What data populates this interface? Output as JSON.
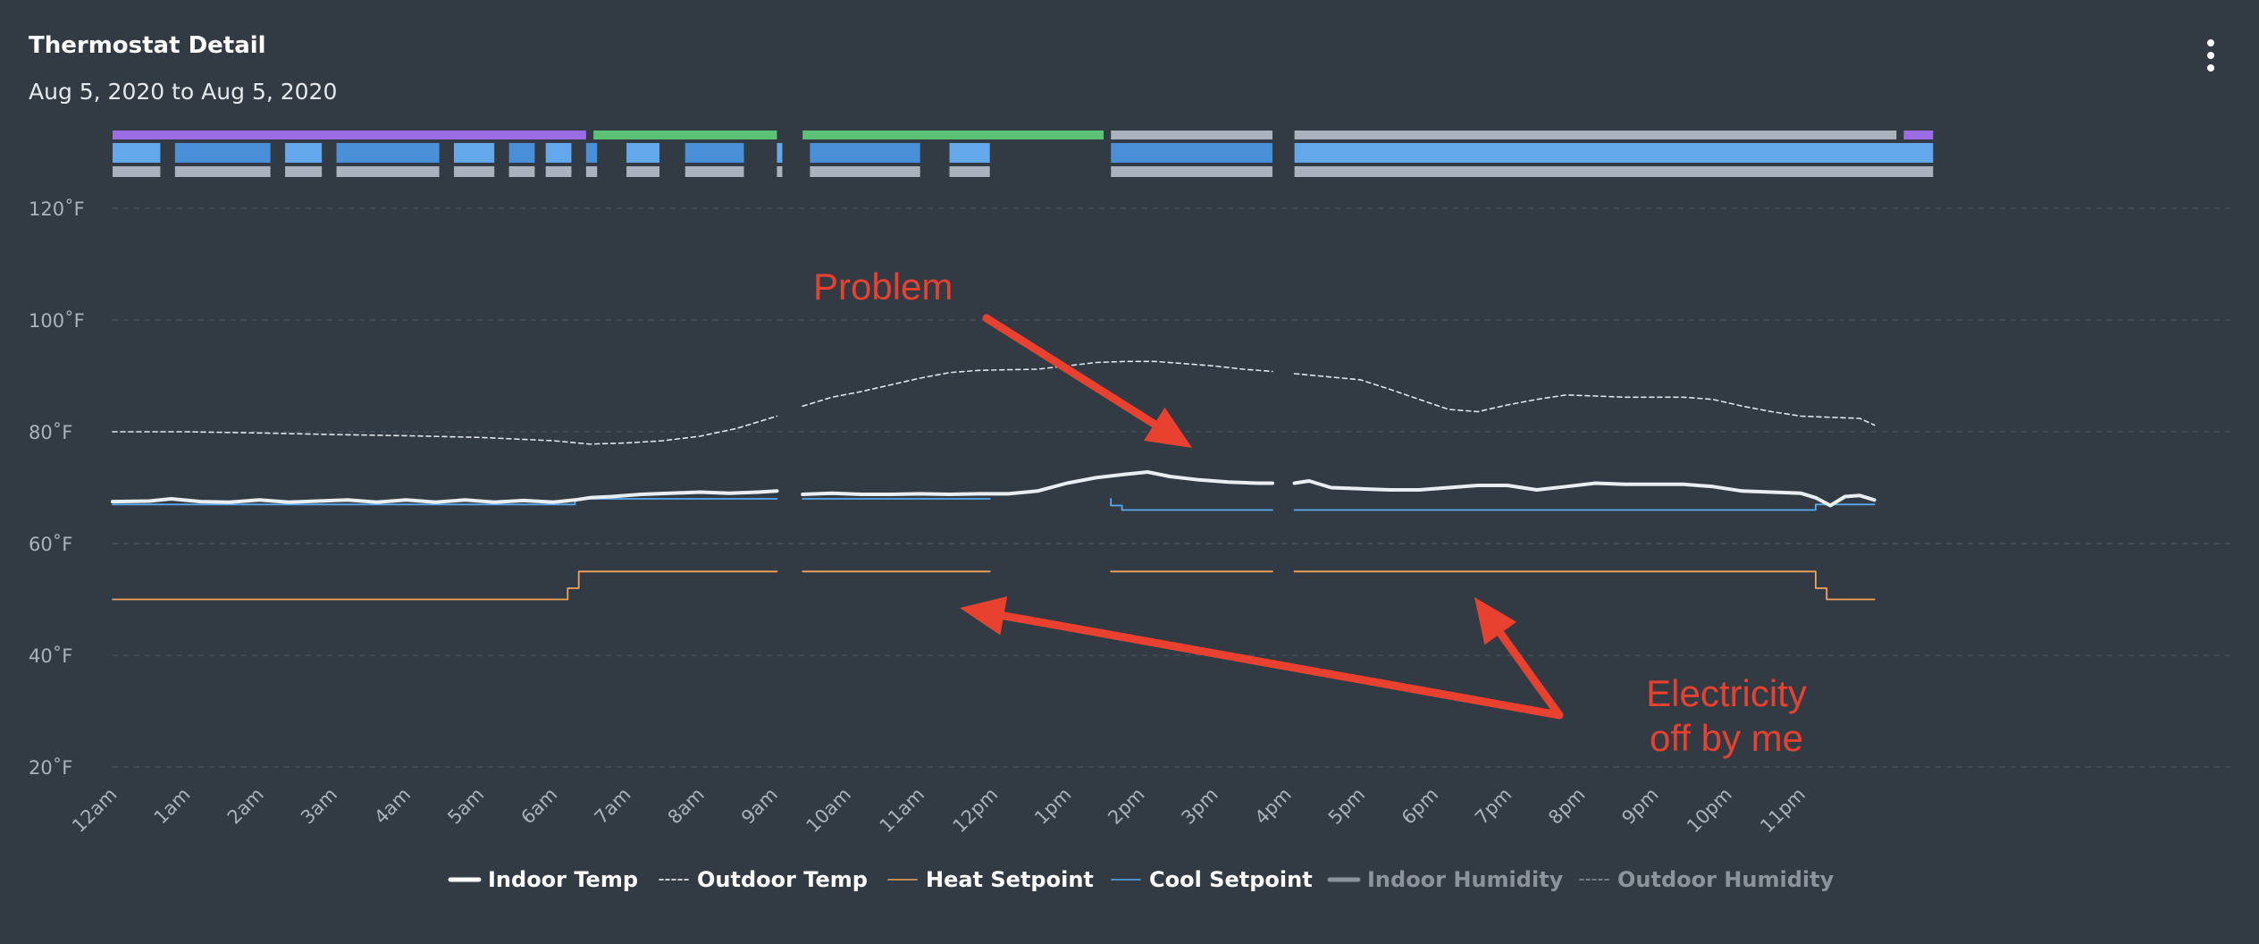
{
  "header": {
    "title": "Thermostat Detail",
    "date_range": "Aug 5, 2020 to Aug 5, 2020",
    "menu_icon": "more-vertical-icon"
  },
  "annotations": {
    "problem": "Problem",
    "electricity_line1": "Electricity",
    "electricity_line2": "off by me",
    "color": "#e8412f"
  },
  "colors": {
    "background": "#323b44",
    "indoor_temp": "#e9eef3",
    "outdoor_temp": "#e0e4e8",
    "heat_setpoint": "#f0a35a",
    "cool_setpoint": "#5aa9f0",
    "indoor_humidity": "#9aa0a6",
    "outdoor_humidity": "#9aa0a6",
    "mode_heat": "#9b6ce6",
    "mode_cool": "#5cc277",
    "mode_off": "#aab3bd",
    "equip_cool": "#4a90d9",
    "equip_cool_bright": "#63a8ea",
    "equip_fan": "#aab3bd"
  },
  "chart_data": {
    "type": "line",
    "title": "Thermostat Detail",
    "subtitle": "Aug 5, 2020 to Aug 5, 2020",
    "x_unit": "hour of day",
    "xlim": [
      0,
      24
    ],
    "ylim": [
      20,
      125
    ],
    "y_ticks": [
      20,
      40,
      60,
      80,
      100,
      120
    ],
    "y_tick_labels": [
      "20˚F",
      "40˚F",
      "60˚F",
      "80˚F",
      "100˚F",
      "120˚F"
    ],
    "x_ticks": [
      0,
      1,
      2,
      3,
      4,
      5,
      6,
      7,
      8,
      9,
      10,
      11,
      12,
      13,
      14,
      15,
      16,
      17,
      18,
      19,
      20,
      21,
      22,
      23
    ],
    "x_tick_labels": [
      "12am",
      "1am",
      "2am",
      "3am",
      "4am",
      "5am",
      "6am",
      "7am",
      "8am",
      "9am",
      "10am",
      "11am",
      "12pm",
      "1pm",
      "2pm",
      "3pm",
      "4pm",
      "5pm",
      "6pm",
      "7pm",
      "8pm",
      "9pm",
      "10pm",
      "11pm"
    ],
    "grid": true,
    "legend_position": "bottom-center",
    "legend": [
      {
        "name": "Indoor Temp",
        "style": "thick-solid",
        "active": true
      },
      {
        "name": "Outdoor Temp",
        "style": "dashed",
        "active": true
      },
      {
        "name": "Heat Setpoint",
        "style": "thin-solid-orange",
        "active": true
      },
      {
        "name": "Cool Setpoint",
        "style": "thin-solid-blue",
        "active": true
      },
      {
        "name": "Indoor Humidity",
        "style": "thick-solid-gray",
        "active": false
      },
      {
        "name": "Outdoor Humidity",
        "style": "dashed-gray",
        "active": false
      }
    ],
    "series": [
      {
        "name": "Indoor Temp",
        "segments": [
          [
            [
              0,
              67.5
            ],
            [
              0.5,
              67.6
            ],
            [
              0.8,
              68
            ],
            [
              1.2,
              67.5
            ],
            [
              1.6,
              67.4
            ],
            [
              2,
              67.8
            ],
            [
              2.4,
              67.4
            ],
            [
              2.8,
              67.6
            ],
            [
              3.2,
              67.8
            ],
            [
              3.6,
              67.4
            ],
            [
              4,
              67.8
            ],
            [
              4.4,
              67.4
            ],
            [
              4.8,
              67.8
            ],
            [
              5.2,
              67.4
            ],
            [
              5.6,
              67.7
            ],
            [
              6,
              67.4
            ],
            [
              6.3,
              67.8
            ],
            [
              6.5,
              68.2
            ],
            [
              6.8,
              68.4
            ],
            [
              7.2,
              68.8
            ],
            [
              7.6,
              69
            ],
            [
              8,
              69.2
            ],
            [
              8.4,
              69
            ],
            [
              8.8,
              69.2
            ],
            [
              9.05,
              69.4
            ]
          ],
          [
            [
              9.4,
              68.8
            ],
            [
              9.8,
              69
            ],
            [
              10.2,
              68.8
            ],
            [
              10.6,
              68.8
            ],
            [
              11,
              68.9
            ],
            [
              11.4,
              68.8
            ],
            [
              11.8,
              68.9
            ],
            [
              12.2,
              68.9
            ],
            [
              12.6,
              69.4
            ],
            [
              13,
              70.8
            ],
            [
              13.4,
              71.8
            ],
            [
              13.8,
              72.4
            ],
            [
              14.1,
              72.8
            ],
            [
              14.4,
              72
            ],
            [
              14.8,
              71.4
            ],
            [
              15.2,
              71
            ],
            [
              15.6,
              70.8
            ],
            [
              15.8,
              70.8
            ]
          ],
          [
            [
              16.1,
              70.8
            ],
            [
              16.3,
              71.2
            ],
            [
              16.6,
              70
            ],
            [
              17,
              69.8
            ],
            [
              17.4,
              69.6
            ],
            [
              17.8,
              69.6
            ],
            [
              18.2,
              70
            ],
            [
              18.6,
              70.4
            ],
            [
              19,
              70.4
            ],
            [
              19.4,
              69.6
            ],
            [
              19.8,
              70.2
            ],
            [
              20.2,
              70.8
            ],
            [
              20.6,
              70.6
            ],
            [
              21,
              70.6
            ],
            [
              21.4,
              70.6
            ],
            [
              21.8,
              70.2
            ],
            [
              22.2,
              69.4
            ],
            [
              22.6,
              69.2
            ],
            [
              23,
              69
            ],
            [
              23.2,
              68.2
            ],
            [
              23.4,
              66.8
            ],
            [
              23.6,
              68.4
            ],
            [
              23.8,
              68.6
            ],
            [
              24,
              67.8
            ]
          ]
        ]
      },
      {
        "name": "Outdoor Temp",
        "segments": [
          [
            [
              0,
              80
            ],
            [
              1,
              80
            ],
            [
              2,
              79.8
            ],
            [
              3,
              79.5
            ],
            [
              4,
              79.3
            ],
            [
              5,
              79
            ],
            [
              6,
              78.4
            ],
            [
              6.5,
              77.8
            ],
            [
              7,
              78
            ],
            [
              7.5,
              78.4
            ],
            [
              8,
              79.2
            ],
            [
              8.5,
              80.6
            ],
            [
              9.05,
              82.8
            ]
          ],
          [
            [
              9.4,
              84.6
            ],
            [
              9.8,
              86.2
            ],
            [
              10.2,
              87.2
            ],
            [
              10.6,
              88.4
            ],
            [
              11,
              89.6
            ],
            [
              11.4,
              90.6
            ],
            [
              11.8,
              91
            ],
            [
              12.2,
              91.1
            ],
            [
              12.6,
              91.2
            ],
            [
              13,
              91.8
            ],
            [
              13.4,
              92.4
            ],
            [
              13.8,
              92.6
            ],
            [
              14.2,
              92.6
            ],
            [
              14.6,
              92.2
            ],
            [
              15,
              91.8
            ],
            [
              15.4,
              91.2
            ],
            [
              15.8,
              90.8
            ]
          ],
          [
            [
              16.1,
              90.4
            ],
            [
              16.6,
              89.8
            ],
            [
              17,
              89.3
            ],
            [
              17.4,
              87.6
            ],
            [
              17.8,
              85.8
            ],
            [
              18.2,
              84
            ],
            [
              18.6,
              83.6
            ],
            [
              19,
              84.8
            ],
            [
              19.4,
              85.8
            ],
            [
              19.8,
              86.6
            ],
            [
              20.2,
              86.4
            ],
            [
              20.6,
              86.2
            ],
            [
              21,
              86.2
            ],
            [
              21.4,
              86.2
            ],
            [
              21.8,
              85.8
            ],
            [
              22.2,
              84.6
            ],
            [
              22.6,
              83.6
            ],
            [
              23,
              82.8
            ],
            [
              23.4,
              82.6
            ],
            [
              23.8,
              82.4
            ],
            [
              24,
              81.2
            ]
          ]
        ]
      },
      {
        "name": "Heat Setpoint",
        "segments": [
          [
            [
              0,
              50
            ],
            [
              6.2,
              50
            ],
            [
              6.2,
              52
            ],
            [
              6.35,
              52
            ],
            [
              6.35,
              55
            ],
            [
              9.05,
              55
            ]
          ],
          [
            [
              9.4,
              55
            ],
            [
              11.95,
              55
            ]
          ],
          [
            [
              13.6,
              55
            ],
            [
              15.8,
              55
            ]
          ],
          [
            [
              16.1,
              55
            ],
            [
              23.2,
              55
            ],
            [
              23.2,
              52
            ],
            [
              23.35,
              52
            ],
            [
              23.35,
              50
            ],
            [
              24,
              50
            ]
          ]
        ]
      },
      {
        "name": "Cool Setpoint",
        "segments": [
          [
            [
              0,
              67
            ],
            [
              6.3,
              67
            ],
            [
              6.3,
              68
            ],
            [
              9.05,
              68
            ]
          ],
          [
            [
              9.4,
              68
            ],
            [
              11.95,
              68
            ]
          ],
          [
            [
              13.6,
              68
            ],
            [
              13.6,
              66.8
            ],
            [
              13.75,
              66.8
            ],
            [
              13.75,
              66
            ],
            [
              15.8,
              66
            ]
          ],
          [
            [
              16.1,
              66
            ],
            [
              23.2,
              66
            ],
            [
              23.2,
              67
            ],
            [
              24,
              67
            ]
          ]
        ]
      }
    ],
    "mode_strip": [
      {
        "mode": "heat",
        "start": 0,
        "end": 6.45
      },
      {
        "mode": "cool",
        "start": 6.55,
        "end": 9.05
      },
      {
        "mode": "cool",
        "start": 9.4,
        "end": 13.5
      },
      {
        "mode": "off",
        "start": 13.6,
        "end": 15.8
      },
      {
        "mode": "off",
        "start": 16.1,
        "end": 24.3
      },
      {
        "mode": "heat",
        "start": 24.4,
        "end": 24.8
      }
    ],
    "equipment_strip": [
      [
        0,
        0.65
      ],
      [
        0.85,
        2.15
      ],
      [
        2.35,
        2.85
      ],
      [
        3.05,
        4.45
      ],
      [
        4.65,
        5.2
      ],
      [
        5.4,
        5.75
      ],
      [
        5.9,
        6.25
      ],
      [
        6.45,
        6.6
      ],
      [
        7.0,
        7.45
      ],
      [
        7.8,
        8.6
      ],
      [
        9.05,
        9.1
      ],
      [
        9.5,
        11.0
      ],
      [
        11.4,
        11.95
      ],
      [
        13.6,
        15.8
      ],
      [
        16.1,
        24.8
      ]
    ],
    "fan_strip": [
      [
        0,
        0.65
      ],
      [
        0.85,
        2.15
      ],
      [
        2.35,
        2.85
      ],
      [
        3.05,
        4.45
      ],
      [
        4.65,
        5.2
      ],
      [
        5.4,
        5.75
      ],
      [
        5.9,
        6.25
      ],
      [
        6.45,
        6.6
      ],
      [
        7.0,
        7.45
      ],
      [
        7.8,
        8.6
      ],
      [
        9.05,
        9.1
      ],
      [
        9.5,
        11.0
      ],
      [
        11.4,
        11.95
      ],
      [
        13.6,
        15.8
      ],
      [
        16.1,
        24.8
      ]
    ]
  }
}
